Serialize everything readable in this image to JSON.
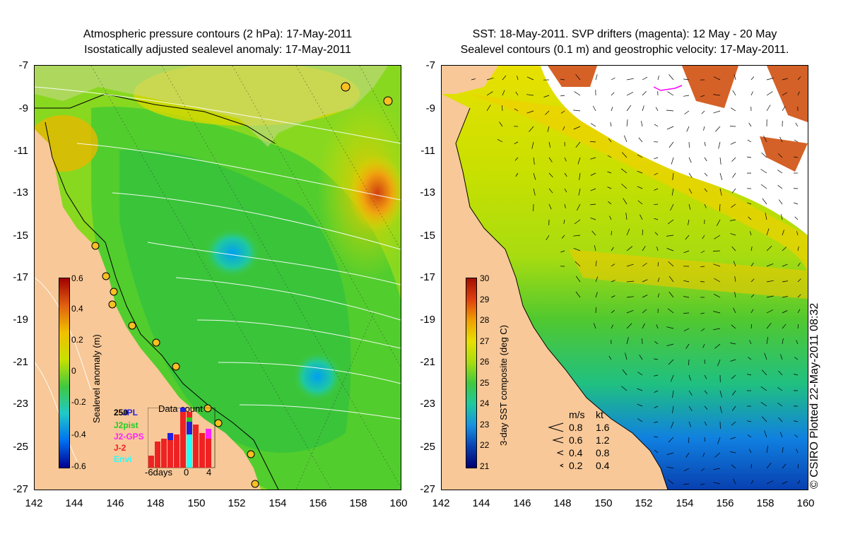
{
  "left_panel": {
    "title_line1": "Atmospheric pressure contours (2 hPa): 17-May-2011",
    "title_line2": "Isostatically adjusted sealevel anomaly: 17-May-2011",
    "colorbar": {
      "label": "Sealevel anomaly (m)",
      "ticks": [
        "0.6",
        "0.4",
        "0.2",
        "0",
        "-0.2",
        "-0.4",
        "-0.6"
      ]
    },
    "data_count": {
      "title": "Data count",
      "max_label": "250",
      "x_labels": [
        "-6days",
        "0",
        "4"
      ],
      "legend": [
        {
          "name": "JPL",
          "color": "#2222dd"
        },
        {
          "name": "J2pist",
          "color": "#22cc22"
        },
        {
          "name": "J2-GPS",
          "color": "#ff22ff"
        },
        {
          "name": "J-2",
          "color": "#ee2222"
        },
        {
          "name": "Envi",
          "color": "#22ffff"
        }
      ]
    }
  },
  "right_panel": {
    "title_line1": "SST: 18-May-2011. SVP drifters (magenta): 12 May - 20 May",
    "title_line2": "Sealevel contours (0.1 m) and geostrophic velocity: 17-May-2011.",
    "colorbar": {
      "label": "3-day SST composite (deg C)",
      "ticks": [
        "30",
        "29",
        "28",
        "27",
        "26",
        "25",
        "24",
        "23",
        "22",
        "21"
      ]
    },
    "vector_key": {
      "header_ms": "m/s",
      "header_kt": "kt",
      "rows": [
        {
          "ms": "0.8",
          "kt": "1.6"
        },
        {
          "ms": "0.6",
          "kt": "1.2"
        },
        {
          "ms": "0.4",
          "kt": "0.8"
        },
        {
          "ms": "0.2",
          "kt": "0.4"
        }
      ]
    },
    "credit": "© CSIRO Plotted 22-May-2011 08:32"
  },
  "axes": {
    "lat_labels": [
      "-7",
      "-9",
      "-11",
      "-13",
      "-15",
      "-17",
      "-19",
      "-21",
      "-23",
      "-25",
      "-27"
    ],
    "lon_labels": [
      "142",
      "144",
      "146",
      "148",
      "150",
      "152",
      "154",
      "156",
      "158",
      "160"
    ]
  },
  "colors": {
    "land": "#f8c898",
    "ocean_green": "#44cc22",
    "ocean_yellow": "#d8e000"
  }
}
